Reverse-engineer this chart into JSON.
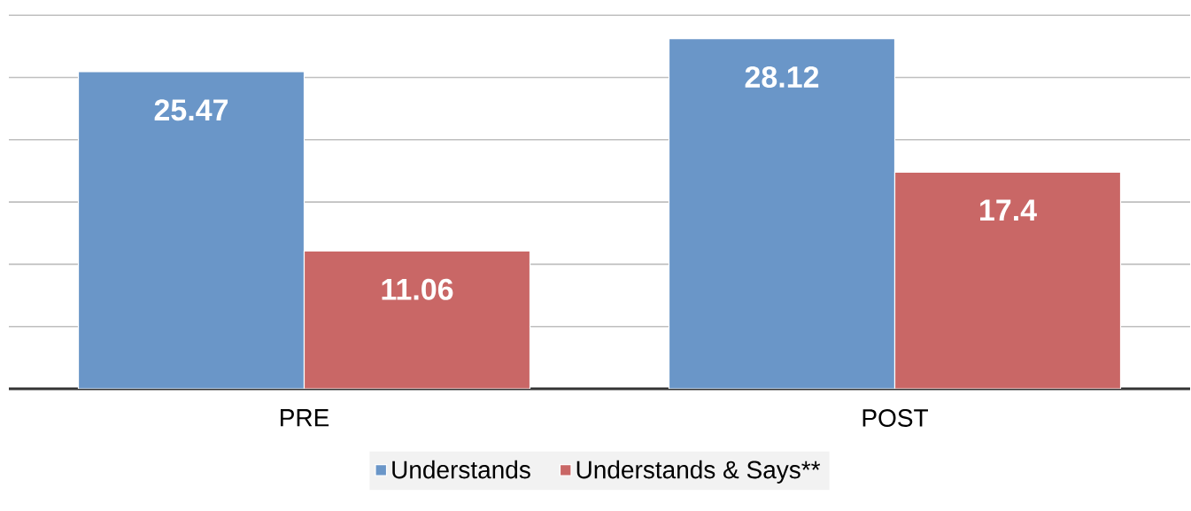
{
  "chart_data": {
    "type": "bar",
    "categories": [
      "PRE",
      "POST"
    ],
    "series": [
      {
        "name": "Understands",
        "color": "#6a96c8",
        "values": [
          25.47,
          28.12
        ]
      },
      {
        "name": "Understands & Says**",
        "color": "#c96766",
        "values": [
          11.06,
          17.4
        ]
      }
    ],
    "grid": "y",
    "tick_labels": "x",
    "legend": "bottom",
    "data_labels": true
  }
}
